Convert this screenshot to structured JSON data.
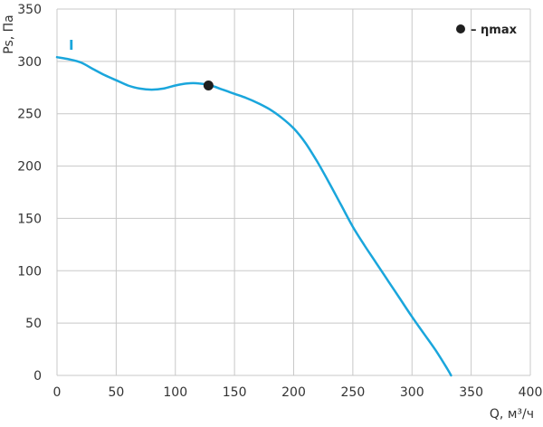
{
  "chart_data": {
    "type": "line",
    "title": "",
    "xlabel": "Q, м³/ч",
    "ylabel": "Ps, Па",
    "xlim": [
      0,
      400
    ],
    "ylim": [
      0,
      350
    ],
    "xticks": [
      0,
      50,
      100,
      150,
      200,
      250,
      300,
      350,
      400
    ],
    "yticks": [
      0,
      50,
      100,
      150,
      200,
      250,
      300,
      350
    ],
    "grid": true,
    "legend": {
      "position": "top-right",
      "marker": "●",
      "label": "– ηmax"
    },
    "series": [
      {
        "label": "I",
        "color": "#1aa6dc",
        "x": [
          0,
          10,
          20,
          30,
          40,
          50,
          60,
          70,
          80,
          90,
          100,
          110,
          120,
          130,
          140,
          150,
          160,
          170,
          180,
          190,
          200,
          210,
          220,
          230,
          240,
          250,
          260,
          270,
          280,
          290,
          300,
          310,
          320,
          330,
          333
        ],
        "y": [
          304,
          302,
          299,
          293,
          287,
          282,
          277,
          274,
          273,
          274,
          277,
          279,
          279,
          277,
          273,
          269,
          265,
          260,
          254,
          246,
          236,
          222,
          204,
          184,
          163,
          142,
          124,
          107,
          90,
          73,
          56,
          40,
          24,
          6,
          0
        ]
      }
    ],
    "annotations": [
      {
        "type": "efficiency-max-point",
        "x": 128,
        "y": 277,
        "color": "#1f1f1f"
      }
    ]
  }
}
